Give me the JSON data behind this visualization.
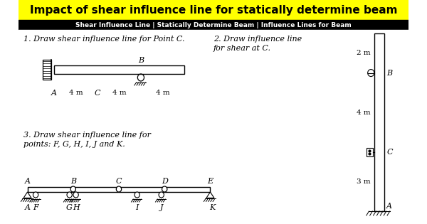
{
  "title": "Impact of shear influence line for statically determine beam",
  "subtitle": "Shear Influence Line | Statically Determine Beam | Influence Lines for Beam",
  "title_bg": "#FFFF00",
  "subtitle_bg": "#000000",
  "subtitle_color": "#FFFFFF",
  "bg_color": "#FFFFFF",
  "text_color": "#000000",
  "q1_text": "1. Draw shear influence line for Point C.",
  "q2_text_line1": "2. Draw influence line",
  "q2_text_line2": "for shear at C.",
  "q3_text_line1": "3. Draw shear influence line for",
  "q3_text_line2": "points: F, G, H, I, J and K."
}
